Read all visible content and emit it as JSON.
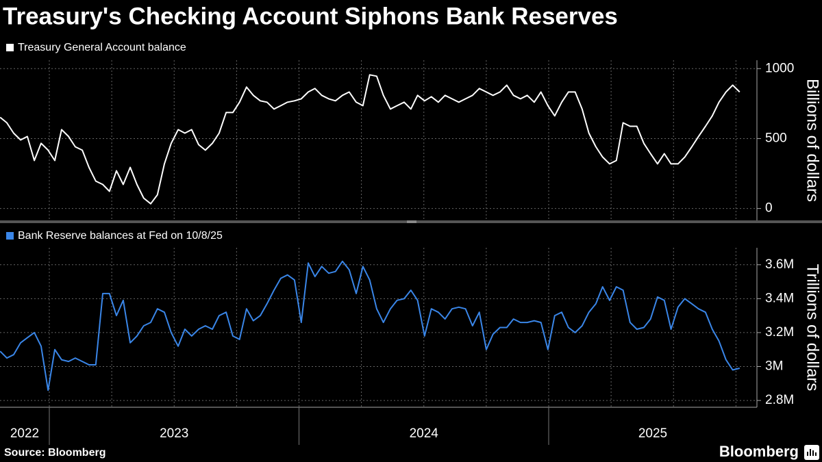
{
  "title": "Treasury's Checking Account Siphons Bank Reserves",
  "source": "Source: Bloomberg",
  "brand": "Bloomberg",
  "chart_data": [
    {
      "type": "line",
      "ylabel": "Billions of dollars",
      "xlim": [
        2022.8025,
        2025.834
      ],
      "xgrid": [
        2023,
        2023.25,
        2023.5,
        2023.75,
        2024,
        2024.25,
        2024.5,
        2024.75,
        2025,
        2025.25,
        2025.5,
        2025.75
      ],
      "ylim": [
        -85,
        1060
      ],
      "yticks": [
        0,
        500,
        1000
      ],
      "grid": true,
      "x": [
        2022.803,
        2022.83,
        2022.857,
        2022.885,
        2022.912,
        2022.94,
        2022.967,
        2022.995,
        2023.022,
        2023.049,
        2023.077,
        2023.104,
        2023.132,
        2023.159,
        2023.186,
        2023.214,
        2023.241,
        2023.269,
        2023.296,
        2023.324,
        2023.351,
        2023.378,
        2023.406,
        2023.433,
        2023.461,
        2023.488,
        2023.516,
        2023.543,
        2023.57,
        2023.598,
        2023.625,
        2023.653,
        2023.68,
        2023.708,
        2023.735,
        2023.762,
        2023.79,
        2023.817,
        2023.845,
        2023.872,
        2023.9,
        2023.927,
        2023.954,
        2023.982,
        2024.009,
        2024.037,
        2024.064,
        2024.091,
        2024.119,
        2024.146,
        2024.174,
        2024.201,
        2024.229,
        2024.256,
        2024.283,
        2024.311,
        2024.338,
        2024.366,
        2024.393,
        2024.421,
        2024.448,
        2024.475,
        2024.503,
        2024.53,
        2024.558,
        2024.585,
        2024.613,
        2024.64,
        2024.667,
        2024.695,
        2024.722,
        2024.75,
        2024.777,
        2024.805,
        2024.832,
        2024.859,
        2024.887,
        2024.914,
        2024.942,
        2024.969,
        2024.997,
        2025.024,
        2025.052,
        2025.079,
        2025.106,
        2025.134,
        2025.161,
        2025.189,
        2025.216,
        2025.244,
        2025.271,
        2025.298,
        2025.326,
        2025.353,
        2025.381,
        2025.408,
        2025.436,
        2025.463,
        2025.49,
        2025.518,
        2025.545,
        2025.573,
        2025.6,
        2025.628,
        2025.655,
        2025.682,
        2025.71,
        2025.737,
        2025.765
      ],
      "series": [
        {
          "name": "Treasury General Account balance",
          "color": "#ffffff",
          "values": [
            652,
            613,
            539,
            490,
            515,
            343,
            466,
            417,
            343,
            564,
            515,
            441,
            417,
            294,
            196,
            172,
            123,
            270,
            172,
            294,
            172,
            74,
            34,
            98,
            319,
            466,
            564,
            539,
            564,
            456,
            417,
            466,
            539,
            686,
            686,
            760,
            868,
            809,
            770,
            760,
            711,
            735,
            760,
            770,
            784,
            833,
            858,
            809,
            784,
            770,
            809,
            833,
            760,
            735,
            956,
            946,
            809,
            711,
            735,
            760,
            711,
            809,
            770,
            799,
            760,
            809,
            784,
            760,
            784,
            809,
            858,
            833,
            809,
            833,
            882,
            809,
            784,
            809,
            760,
            833,
            735,
            662,
            760,
            833,
            833,
            711,
            539,
            441,
            368,
            319,
            343,
            613,
            588,
            588,
            466,
            392,
            319,
            392,
            319,
            319,
            368,
            441,
            515,
            588,
            662,
            760,
            833,
            882,
            833
          ]
        }
      ]
    },
    {
      "type": "line",
      "ylabel": "Trillions of dollars",
      "xlim": [
        2022.8025,
        2025.834
      ],
      "xgrid": [
        2023,
        2023.25,
        2023.5,
        2023.75,
        2024,
        2024.25,
        2024.5,
        2024.75,
        2025,
        2025.25,
        2025.5,
        2025.75
      ],
      "xticks": [
        2022,
        2023,
        2024,
        2025
      ],
      "ylim": [
        2.76,
        3.7
      ],
      "yticks": [
        {
          "value": 2.8,
          "label": "2.8M"
        },
        {
          "value": 3.0,
          "label": "3M"
        },
        {
          "value": 3.2,
          "label": "3.2M"
        },
        {
          "value": 3.4,
          "label": "3.4M"
        },
        {
          "value": 3.6,
          "label": "3.6M"
        }
      ],
      "grid": true,
      "x": [
        2022.803,
        2022.83,
        2022.857,
        2022.885,
        2022.912,
        2022.94,
        2022.967,
        2022.995,
        2023.022,
        2023.049,
        2023.077,
        2023.104,
        2023.132,
        2023.159,
        2023.186,
        2023.214,
        2023.241,
        2023.269,
        2023.296,
        2023.324,
        2023.351,
        2023.378,
        2023.406,
        2023.433,
        2023.461,
        2023.488,
        2023.516,
        2023.543,
        2023.57,
        2023.598,
        2023.625,
        2023.653,
        2023.68,
        2023.708,
        2023.735,
        2023.762,
        2023.79,
        2023.817,
        2023.845,
        2023.872,
        2023.9,
        2023.927,
        2023.954,
        2023.982,
        2024.009,
        2024.037,
        2024.064,
        2024.091,
        2024.119,
        2024.146,
        2024.174,
        2024.201,
        2024.229,
        2024.256,
        2024.283,
        2024.311,
        2024.338,
        2024.366,
        2024.393,
        2024.421,
        2024.448,
        2024.475,
        2024.503,
        2024.53,
        2024.558,
        2024.585,
        2024.613,
        2024.64,
        2024.667,
        2024.695,
        2024.722,
        2024.75,
        2024.777,
        2024.805,
        2024.832,
        2024.859,
        2024.887,
        2024.914,
        2024.942,
        2024.969,
        2024.997,
        2025.024,
        2025.052,
        2025.079,
        2025.106,
        2025.134,
        2025.161,
        2025.189,
        2025.216,
        2025.244,
        2025.271,
        2025.298,
        2025.326,
        2025.353,
        2025.381,
        2025.408,
        2025.436,
        2025.463,
        2025.49,
        2025.518,
        2025.545,
        2025.573,
        2025.6,
        2025.628,
        2025.655,
        2025.682,
        2025.71,
        2025.737,
        2025.765
      ],
      "series": [
        {
          "name": "Bank Reserve balances at Fed on 10/8/25",
          "color": "#3a86e8",
          "values": [
            3.09,
            3.05,
            3.07,
            3.14,
            3.17,
            3.2,
            3.12,
            2.86,
            3.1,
            3.04,
            3.03,
            3.05,
            3.03,
            3.01,
            3.01,
            3.43,
            3.43,
            3.3,
            3.39,
            3.14,
            3.18,
            3.24,
            3.26,
            3.34,
            3.32,
            3.2,
            3.12,
            3.22,
            3.18,
            3.22,
            3.24,
            3.22,
            3.3,
            3.32,
            3.18,
            3.16,
            3.34,
            3.27,
            3.3,
            3.37,
            3.45,
            3.52,
            3.54,
            3.51,
            3.26,
            3.61,
            3.53,
            3.59,
            3.55,
            3.56,
            3.62,
            3.57,
            3.43,
            3.59,
            3.51,
            3.34,
            3.26,
            3.34,
            3.39,
            3.4,
            3.45,
            3.39,
            3.18,
            3.34,
            3.32,
            3.28,
            3.34,
            3.35,
            3.34,
            3.24,
            3.32,
            3.1,
            3.19,
            3.23,
            3.23,
            3.28,
            3.26,
            3.26,
            3.27,
            3.26,
            3.1,
            3.3,
            3.32,
            3.23,
            3.2,
            3.24,
            3.32,
            3.37,
            3.47,
            3.39,
            3.47,
            3.45,
            3.26,
            3.22,
            3.23,
            3.28,
            3.41,
            3.39,
            3.22,
            3.35,
            3.4,
            3.37,
            3.34,
            3.32,
            3.22,
            3.15,
            3.04,
            2.98,
            2.99
          ]
        }
      ]
    }
  ]
}
